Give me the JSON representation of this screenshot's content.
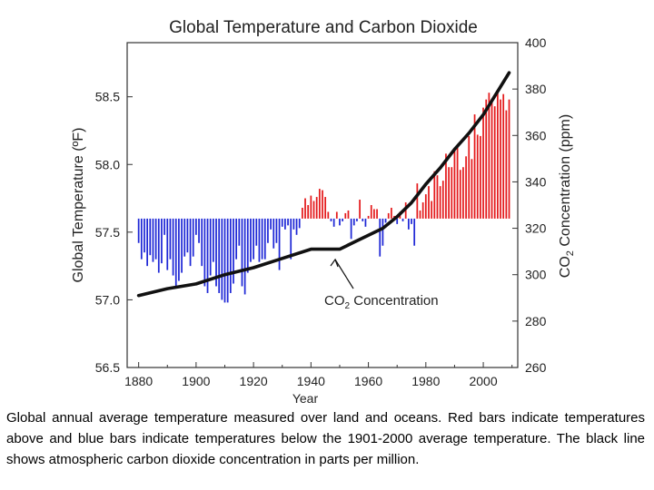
{
  "chart_data": {
    "type": "bar",
    "title": "Global Temperature and Carbon Dioxide",
    "xlabel": "Year",
    "ylabel_left": "Global Temperature (ºF)",
    "ylabel_right_prefix": "CO",
    "ylabel_right_sub": "2",
    "ylabel_right_suffix": " Concentration (ppm)",
    "x_range": [
      1876,
      2012
    ],
    "ylim_left": [
      56.5,
      58.9
    ],
    "ylim_right": [
      260,
      400
    ],
    "baseline_temperature": 57.6,
    "x_ticks": [
      "1880",
      "1900",
      "1920",
      "1940",
      "1960",
      "1980",
      "2000"
    ],
    "y_ticks_left": [
      "56.5",
      "57.0",
      "57.5",
      "58.0",
      "58.5"
    ],
    "y_ticks_right": [
      "260",
      "280",
      "300",
      "320",
      "340",
      "360",
      "380",
      "400"
    ],
    "bar_colors": {
      "above": "#e41a1c",
      "below": "#1f28d6"
    },
    "line_color": "#111111",
    "annotation": {
      "prefix": "CO",
      "sub": "2",
      "suffix": " Concentration",
      "target_year": 1948,
      "target_ppm": 310
    },
    "years_start": 1880,
    "temperatures": [
      57.42,
      57.3,
      57.35,
      57.25,
      57.33,
      57.28,
      57.3,
      57.2,
      57.27,
      57.48,
      57.22,
      57.3,
      57.18,
      57.1,
      57.14,
      57.2,
      57.32,
      57.35,
      57.25,
      57.32,
      57.48,
      57.42,
      57.25,
      57.1,
      57.05,
      57.18,
      57.28,
      57.1,
      57.05,
      57.0,
      56.98,
      56.98,
      57.05,
      57.12,
      57.3,
      57.4,
      57.1,
      57.04,
      57.2,
      57.28,
      57.3,
      57.4,
      57.28,
      57.3,
      57.3,
      57.42,
      57.52,
      57.38,
      57.42,
      57.22,
      57.54,
      57.52,
      57.55,
      57.3,
      57.52,
      57.48,
      57.53,
      57.68,
      57.75,
      57.7,
      57.77,
      57.73,
      57.76,
      57.82,
      57.81,
      57.76,
      57.65,
      57.58,
      57.54,
      57.65,
      57.55,
      57.58,
      57.64,
      57.66,
      57.45,
      57.55,
      57.58,
      57.74,
      57.58,
      57.54,
      57.62,
      57.7,
      57.67,
      57.67,
      57.32,
      57.4,
      57.57,
      57.64,
      57.68,
      57.62,
      57.56,
      57.65,
      57.58,
      57.72,
      57.52,
      57.56,
      57.4,
      57.86,
      57.66,
      57.72,
      57.78,
      57.84,
      57.73,
      57.95,
      57.92,
      57.84,
      57.88,
      58.08,
      57.98,
      57.98,
      58.12,
      58.13,
      57.96,
      57.98,
      58.06,
      58.21,
      58.04,
      58.37,
      58.22,
      58.21,
      58.42,
      58.48,
      58.53,
      58.46,
      58.43,
      58.54,
      58.48,
      58.52,
      58.4,
      58.48
    ],
    "co2_points": [
      [
        1880,
        291
      ],
      [
        1890,
        294
      ],
      [
        1900,
        296
      ],
      [
        1910,
        300
      ],
      [
        1920,
        303
      ],
      [
        1930,
        307
      ],
      [
        1940,
        311
      ],
      [
        1945,
        311
      ],
      [
        1950,
        311
      ],
      [
        1955,
        314
      ],
      [
        1960,
        317
      ],
      [
        1965,
        320
      ],
      [
        1970,
        325
      ],
      [
        1975,
        331
      ],
      [
        1980,
        339
      ],
      [
        1985,
        346
      ],
      [
        1990,
        354
      ],
      [
        1995,
        361
      ],
      [
        2000,
        369
      ],
      [
        2005,
        379
      ],
      [
        2009,
        387
      ]
    ]
  },
  "caption": "Global annual average temperature measured over land and oceans. Red bars indicate temperatures above and blue bars indicate temperatures below the 1901-2000 average temperature. The black line shows atmospheric carbon dioxide concentration in parts per million."
}
